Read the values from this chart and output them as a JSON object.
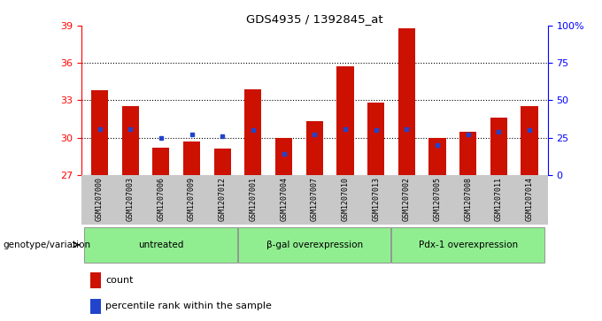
{
  "title": "GDS4935 / 1392845_at",
  "samples": [
    "GSM1207000",
    "GSM1207003",
    "GSM1207006",
    "GSM1207009",
    "GSM1207012",
    "GSM1207001",
    "GSM1207004",
    "GSM1207007",
    "GSM1207010",
    "GSM1207013",
    "GSM1207002",
    "GSM1207005",
    "GSM1207008",
    "GSM1207011",
    "GSM1207014"
  ],
  "counts": [
    33.8,
    32.5,
    29.2,
    29.7,
    29.1,
    33.9,
    30.0,
    31.3,
    35.7,
    32.8,
    38.8,
    30.0,
    30.5,
    31.6,
    32.5
  ],
  "percentile_pct": [
    31,
    31,
    25,
    27,
    26,
    30,
    14,
    27,
    31,
    30,
    31,
    20,
    27,
    29,
    30
  ],
  "bar_color": "#CC1100",
  "marker_color": "#2244CC",
  "ylim_left": [
    27,
    39
  ],
  "ylim_right": [
    0,
    100
  ],
  "yticks_left": [
    27,
    30,
    33,
    36,
    39
  ],
  "yticks_right": [
    0,
    25,
    50,
    75,
    100
  ],
  "ytick_labels_right": [
    "0",
    "25",
    "50",
    "75",
    "100%"
  ],
  "groups": [
    {
      "label": "untreated",
      "start": 0,
      "end": 5
    },
    {
      "label": "β-gal overexpression",
      "start": 5,
      "end": 10
    },
    {
      "label": "Pdx-1 overexpression",
      "start": 10,
      "end": 15
    }
  ],
  "group_color": "#90EE90",
  "xlabel_left": "genotype/variation",
  "legend_count_label": "count",
  "legend_percentile_label": "percentile rank within the sample",
  "tick_area_color": "#C8C8C8",
  "background_color": "#FFFFFF",
  "bar_width": 0.55,
  "dotted_lines": [
    30,
    33,
    36
  ]
}
